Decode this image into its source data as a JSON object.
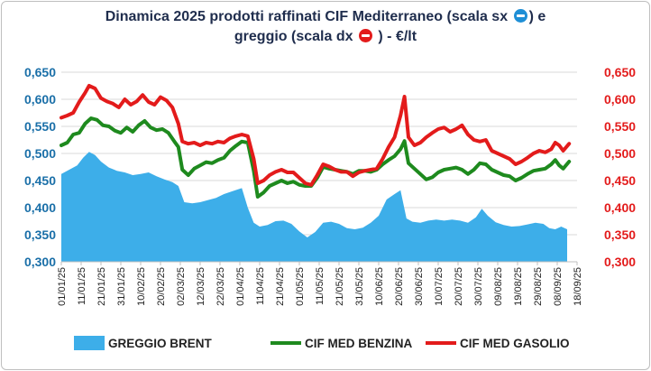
{
  "title": {
    "line1": "Dinamica 2025 prodotti raffinati CIF Mediterraneo (scala sx",
    "line1_end": ") e",
    "line2": "greggio (scala dx",
    "line2_end": ") - €/lt",
    "left_icon": "left-arrow-circle-icon",
    "right_icon": "right-arrow-circle-icon"
  },
  "chart_data": {
    "type": "line",
    "title": "Dinamica 2025 prodotti raffinati CIF Mediterraneo (scala sx) e greggio (scala dx) - €/lt",
    "x_start": "01/01/25",
    "x_end": "18/09/25",
    "x_ticks": [
      "01/01/25",
      "11/01/25",
      "21/01/25",
      "31/01/25",
      "10/02/25",
      "20/02/25",
      "02/03/25",
      "12/03/25",
      "22/03/25",
      "01/04/25",
      "11/04/25",
      "21/04/25",
      "01/05/25",
      "11/05/25",
      "21/05/25",
      "31/05/25",
      "10/06/25",
      "20/06/25",
      "30/06/25",
      "10/07/25",
      "20/07/25",
      "30/07/25",
      "09/08/25",
      "19/08/25",
      "29/08/25",
      "08/09/25",
      "18/09/25"
    ],
    "y_left": {
      "range": [
        0.3,
        0.65
      ],
      "ticks": [
        "0,300",
        "0,350",
        "0,400",
        "0,450",
        "0,500",
        "0,550",
        "0,600",
        "0,650"
      ]
    },
    "y_right": {
      "range": [
        0.3,
        0.65
      ],
      "ticks": [
        "0,300",
        "0,350",
        "0,400",
        "0,450",
        "0,500",
        "0,550",
        "0,600",
        "0,650"
      ]
    },
    "grid": true,
    "legend_position": "bottom",
    "series": [
      {
        "name": "GREGGIO BRENT",
        "kind": "area",
        "axis": "right",
        "color": "#3daee9",
        "points": [
          [
            "01/01/25",
            0.462
          ],
          [
            "05/01/25",
            0.47
          ],
          [
            "09/01/25",
            0.478
          ],
          [
            "12/01/25",
            0.492
          ],
          [
            "15/01/25",
            0.503
          ],
          [
            "18/01/25",
            0.497
          ],
          [
            "21/01/25",
            0.485
          ],
          [
            "25/01/25",
            0.474
          ],
          [
            "29/01/25",
            0.468
          ],
          [
            "02/02/25",
            0.465
          ],
          [
            "06/02/25",
            0.46
          ],
          [
            "10/02/25",
            0.462
          ],
          [
            "14/02/25",
            0.465
          ],
          [
            "18/02/25",
            0.458
          ],
          [
            "22/02/25",
            0.452
          ],
          [
            "26/02/25",
            0.447
          ],
          [
            "01/03/25",
            0.44
          ],
          [
            "04/03/25",
            0.41
          ],
          [
            "08/03/25",
            0.408
          ],
          [
            "12/03/25",
            0.41
          ],
          [
            "16/03/25",
            0.414
          ],
          [
            "20/03/25",
            0.418
          ],
          [
            "24/03/25",
            0.425
          ],
          [
            "28/03/25",
            0.43
          ],
          [
            "02/04/25",
            0.436
          ],
          [
            "05/04/25",
            0.4
          ],
          [
            "08/04/25",
            0.372
          ],
          [
            "11/04/25",
            0.365
          ],
          [
            "15/04/25",
            0.368
          ],
          [
            "19/04/25",
            0.375
          ],
          [
            "23/04/25",
            0.376
          ],
          [
            "27/04/25",
            0.37
          ],
          [
            "01/05/25",
            0.356
          ],
          [
            "05/05/25",
            0.345
          ],
          [
            "09/05/25",
            0.355
          ],
          [
            "13/05/25",
            0.372
          ],
          [
            "17/05/25",
            0.374
          ],
          [
            "21/05/25",
            0.37
          ],
          [
            "25/05/25",
            0.362
          ],
          [
            "29/05/25",
            0.36
          ],
          [
            "02/06/25",
            0.363
          ],
          [
            "06/06/25",
            0.372
          ],
          [
            "10/06/25",
            0.385
          ],
          [
            "14/06/25",
            0.415
          ],
          [
            "18/06/25",
            0.425
          ],
          [
            "21/06/25",
            0.432
          ],
          [
            "24/06/25",
            0.38
          ],
          [
            "27/06/25",
            0.374
          ],
          [
            "01/07/25",
            0.372
          ],
          [
            "05/07/25",
            0.376
          ],
          [
            "09/07/25",
            0.378
          ],
          [
            "13/07/25",
            0.376
          ],
          [
            "17/07/25",
            0.378
          ],
          [
            "21/07/25",
            0.376
          ],
          [
            "25/07/25",
            0.372
          ],
          [
            "29/07/25",
            0.382
          ],
          [
            "01/08/25",
            0.398
          ],
          [
            "04/08/25",
            0.385
          ],
          [
            "08/08/25",
            0.373
          ],
          [
            "12/08/25",
            0.368
          ],
          [
            "16/08/25",
            0.365
          ],
          [
            "20/08/25",
            0.366
          ],
          [
            "24/08/25",
            0.369
          ],
          [
            "28/08/25",
            0.372
          ],
          [
            "01/09/25",
            0.37
          ],
          [
            "04/09/25",
            0.362
          ],
          [
            "07/09/25",
            0.36
          ],
          [
            "10/09/25",
            0.365
          ],
          [
            "13/09/25",
            0.36
          ]
        ]
      },
      {
        "name": "CIF MED BENZINA",
        "kind": "line",
        "axis": "left",
        "color": "#1e8a1e",
        "points": [
          [
            "01/01/25",
            0.515
          ],
          [
            "04/01/25",
            0.52
          ],
          [
            "07/01/25",
            0.535
          ],
          [
            "10/01/25",
            0.538
          ],
          [
            "13/01/25",
            0.555
          ],
          [
            "16/01/25",
            0.565
          ],
          [
            "19/01/25",
            0.562
          ],
          [
            "22/01/25",
            0.552
          ],
          [
            "25/01/25",
            0.55
          ],
          [
            "28/01/25",
            0.542
          ],
          [
            "31/01/25",
            0.538
          ],
          [
            "03/02/25",
            0.548
          ],
          [
            "06/02/25",
            0.54
          ],
          [
            "09/02/25",
            0.552
          ],
          [
            "12/02/25",
            0.56
          ],
          [
            "15/02/25",
            0.548
          ],
          [
            "18/02/25",
            0.543
          ],
          [
            "21/02/25",
            0.545
          ],
          [
            "24/02/25",
            0.538
          ],
          [
            "27/02/25",
            0.522
          ],
          [
            "01/03/25",
            0.512
          ],
          [
            "03/03/25",
            0.47
          ],
          [
            "06/03/25",
            0.46
          ],
          [
            "09/03/25",
            0.472
          ],
          [
            "12/03/25",
            0.478
          ],
          [
            "15/03/25",
            0.484
          ],
          [
            "18/03/25",
            0.482
          ],
          [
            "21/03/25",
            0.488
          ],
          [
            "24/03/25",
            0.492
          ],
          [
            "27/03/25",
            0.505
          ],
          [
            "30/03/25",
            0.514
          ],
          [
            "02/04/25",
            0.522
          ],
          [
            "05/04/25",
            0.52
          ],
          [
            "08/04/25",
            0.468
          ],
          [
            "10/04/25",
            0.42
          ],
          [
            "13/04/25",
            0.428
          ],
          [
            "16/04/25",
            0.44
          ],
          [
            "19/04/25",
            0.445
          ],
          [
            "22/04/25",
            0.45
          ],
          [
            "25/04/25",
            0.445
          ],
          [
            "28/04/25",
            0.448
          ],
          [
            "01/05/25",
            0.442
          ],
          [
            "04/05/25",
            0.44
          ],
          [
            "07/05/25",
            0.44
          ],
          [
            "10/05/25",
            0.455
          ],
          [
            "13/05/25",
            0.475
          ],
          [
            "16/05/25",
            0.472
          ],
          [
            "19/05/25",
            0.47
          ],
          [
            "22/05/25",
            0.468
          ],
          [
            "25/05/25",
            0.466
          ],
          [
            "28/05/25",
            0.462
          ],
          [
            "31/05/25",
            0.468
          ],
          [
            "03/06/25",
            0.468
          ],
          [
            "06/06/25",
            0.466
          ],
          [
            "09/06/25",
            0.47
          ],
          [
            "12/06/25",
            0.48
          ],
          [
            "15/06/25",
            0.488
          ],
          [
            "18/06/25",
            0.495
          ],
          [
            "21/06/25",
            0.508
          ],
          [
            "23/06/25",
            0.523
          ],
          [
            "25/06/25",
            0.482
          ],
          [
            "28/06/25",
            0.472
          ],
          [
            "01/07/25",
            0.462
          ],
          [
            "04/07/25",
            0.452
          ],
          [
            "07/07/25",
            0.456
          ],
          [
            "10/07/25",
            0.465
          ],
          [
            "13/07/25",
            0.47
          ],
          [
            "16/07/25",
            0.472
          ],
          [
            "19/07/25",
            0.474
          ],
          [
            "22/07/25",
            0.47
          ],
          [
            "25/07/25",
            0.462
          ],
          [
            "28/07/25",
            0.47
          ],
          [
            "31/07/25",
            0.482
          ],
          [
            "03/08/25",
            0.48
          ],
          [
            "06/08/25",
            0.47
          ],
          [
            "09/08/25",
            0.465
          ],
          [
            "12/08/25",
            0.46
          ],
          [
            "15/08/25",
            0.458
          ],
          [
            "18/08/25",
            0.45
          ],
          [
            "21/08/25",
            0.455
          ],
          [
            "24/08/25",
            0.462
          ],
          [
            "27/08/25",
            0.468
          ],
          [
            "30/08/25",
            0.47
          ],
          [
            "02/09/25",
            0.472
          ],
          [
            "05/09/25",
            0.48
          ],
          [
            "07/09/25",
            0.488
          ],
          [
            "09/09/25",
            0.478
          ],
          [
            "11/09/25",
            0.472
          ],
          [
            "14/09/25",
            0.485
          ]
        ]
      },
      {
        "name": "CIF MED GASOLIO",
        "kind": "line",
        "axis": "left",
        "color": "#e31b1b",
        "points": [
          [
            "01/01/25",
            0.566
          ],
          [
            "04/01/25",
            0.57
          ],
          [
            "07/01/25",
            0.575
          ],
          [
            "10/01/25",
            0.595
          ],
          [
            "13/01/25",
            0.612
          ],
          [
            "15/01/25",
            0.625
          ],
          [
            "18/01/25",
            0.62
          ],
          [
            "21/01/25",
            0.602
          ],
          [
            "24/01/25",
            0.596
          ],
          [
            "27/01/25",
            0.592
          ],
          [
            "30/01/25",
            0.585
          ],
          [
            "02/02/25",
            0.6
          ],
          [
            "05/02/25",
            0.59
          ],
          [
            "08/02/25",
            0.596
          ],
          [
            "11/02/25",
            0.608
          ],
          [
            "14/02/25",
            0.595
          ],
          [
            "17/02/25",
            0.59
          ],
          [
            "20/02/25",
            0.604
          ],
          [
            "23/02/25",
            0.598
          ],
          [
            "26/02/25",
            0.585
          ],
          [
            "01/03/25",
            0.555
          ],
          [
            "03/03/25",
            0.522
          ],
          [
            "06/03/25",
            0.518
          ],
          [
            "09/03/25",
            0.52
          ],
          [
            "12/03/25",
            0.515
          ],
          [
            "15/03/25",
            0.52
          ],
          [
            "18/03/25",
            0.518
          ],
          [
            "21/03/25",
            0.522
          ],
          [
            "24/03/25",
            0.52
          ],
          [
            "27/03/25",
            0.528
          ],
          [
            "30/03/25",
            0.532
          ],
          [
            "02/04/25",
            0.535
          ],
          [
            "05/04/25",
            0.532
          ],
          [
            "08/04/25",
            0.49
          ],
          [
            "10/04/25",
            0.445
          ],
          [
            "13/04/25",
            0.45
          ],
          [
            "16/04/25",
            0.46
          ],
          [
            "19/04/25",
            0.466
          ],
          [
            "22/04/25",
            0.47
          ],
          [
            "25/04/25",
            0.465
          ],
          [
            "28/04/25",
            0.465
          ],
          [
            "01/05/25",
            0.455
          ],
          [
            "04/05/25",
            0.445
          ],
          [
            "07/05/25",
            0.442
          ],
          [
            "10/05/25",
            0.46
          ],
          [
            "13/05/25",
            0.48
          ],
          [
            "16/05/25",
            0.476
          ],
          [
            "19/05/25",
            0.47
          ],
          [
            "22/05/25",
            0.466
          ],
          [
            "25/05/25",
            0.466
          ],
          [
            "28/05/25",
            0.458
          ],
          [
            "31/05/25",
            0.465
          ],
          [
            "03/06/25",
            0.468
          ],
          [
            "06/06/25",
            0.47
          ],
          [
            "09/06/25",
            0.472
          ],
          [
            "12/06/25",
            0.49
          ],
          [
            "15/06/25",
            0.512
          ],
          [
            "18/06/25",
            0.53
          ],
          [
            "21/06/25",
            0.57
          ],
          [
            "23/06/25",
            0.605
          ],
          [
            "25/06/25",
            0.53
          ],
          [
            "28/06/25",
            0.515
          ],
          [
            "01/07/25",
            0.52
          ],
          [
            "04/07/25",
            0.53
          ],
          [
            "07/07/25",
            0.538
          ],
          [
            "10/07/25",
            0.545
          ],
          [
            "13/07/25",
            0.548
          ],
          [
            "16/07/25",
            0.54
          ],
          [
            "19/07/25",
            0.545
          ],
          [
            "22/07/25",
            0.552
          ],
          [
            "25/07/25",
            0.535
          ],
          [
            "28/07/25",
            0.525
          ],
          [
            "31/07/25",
            0.522
          ],
          [
            "03/08/25",
            0.525
          ],
          [
            "06/08/25",
            0.505
          ],
          [
            "09/08/25",
            0.5
          ],
          [
            "12/08/25",
            0.495
          ],
          [
            "15/08/25",
            0.49
          ],
          [
            "18/08/25",
            0.48
          ],
          [
            "21/08/25",
            0.485
          ],
          [
            "24/08/25",
            0.492
          ],
          [
            "27/08/25",
            0.5
          ],
          [
            "30/08/25",
            0.505
          ],
          [
            "02/09/25",
            0.502
          ],
          [
            "05/09/25",
            0.508
          ],
          [
            "07/09/25",
            0.52
          ],
          [
            "09/09/25",
            0.515
          ],
          [
            "11/09/25",
            0.505
          ],
          [
            "14/09/25",
            0.518
          ]
        ]
      }
    ]
  }
}
